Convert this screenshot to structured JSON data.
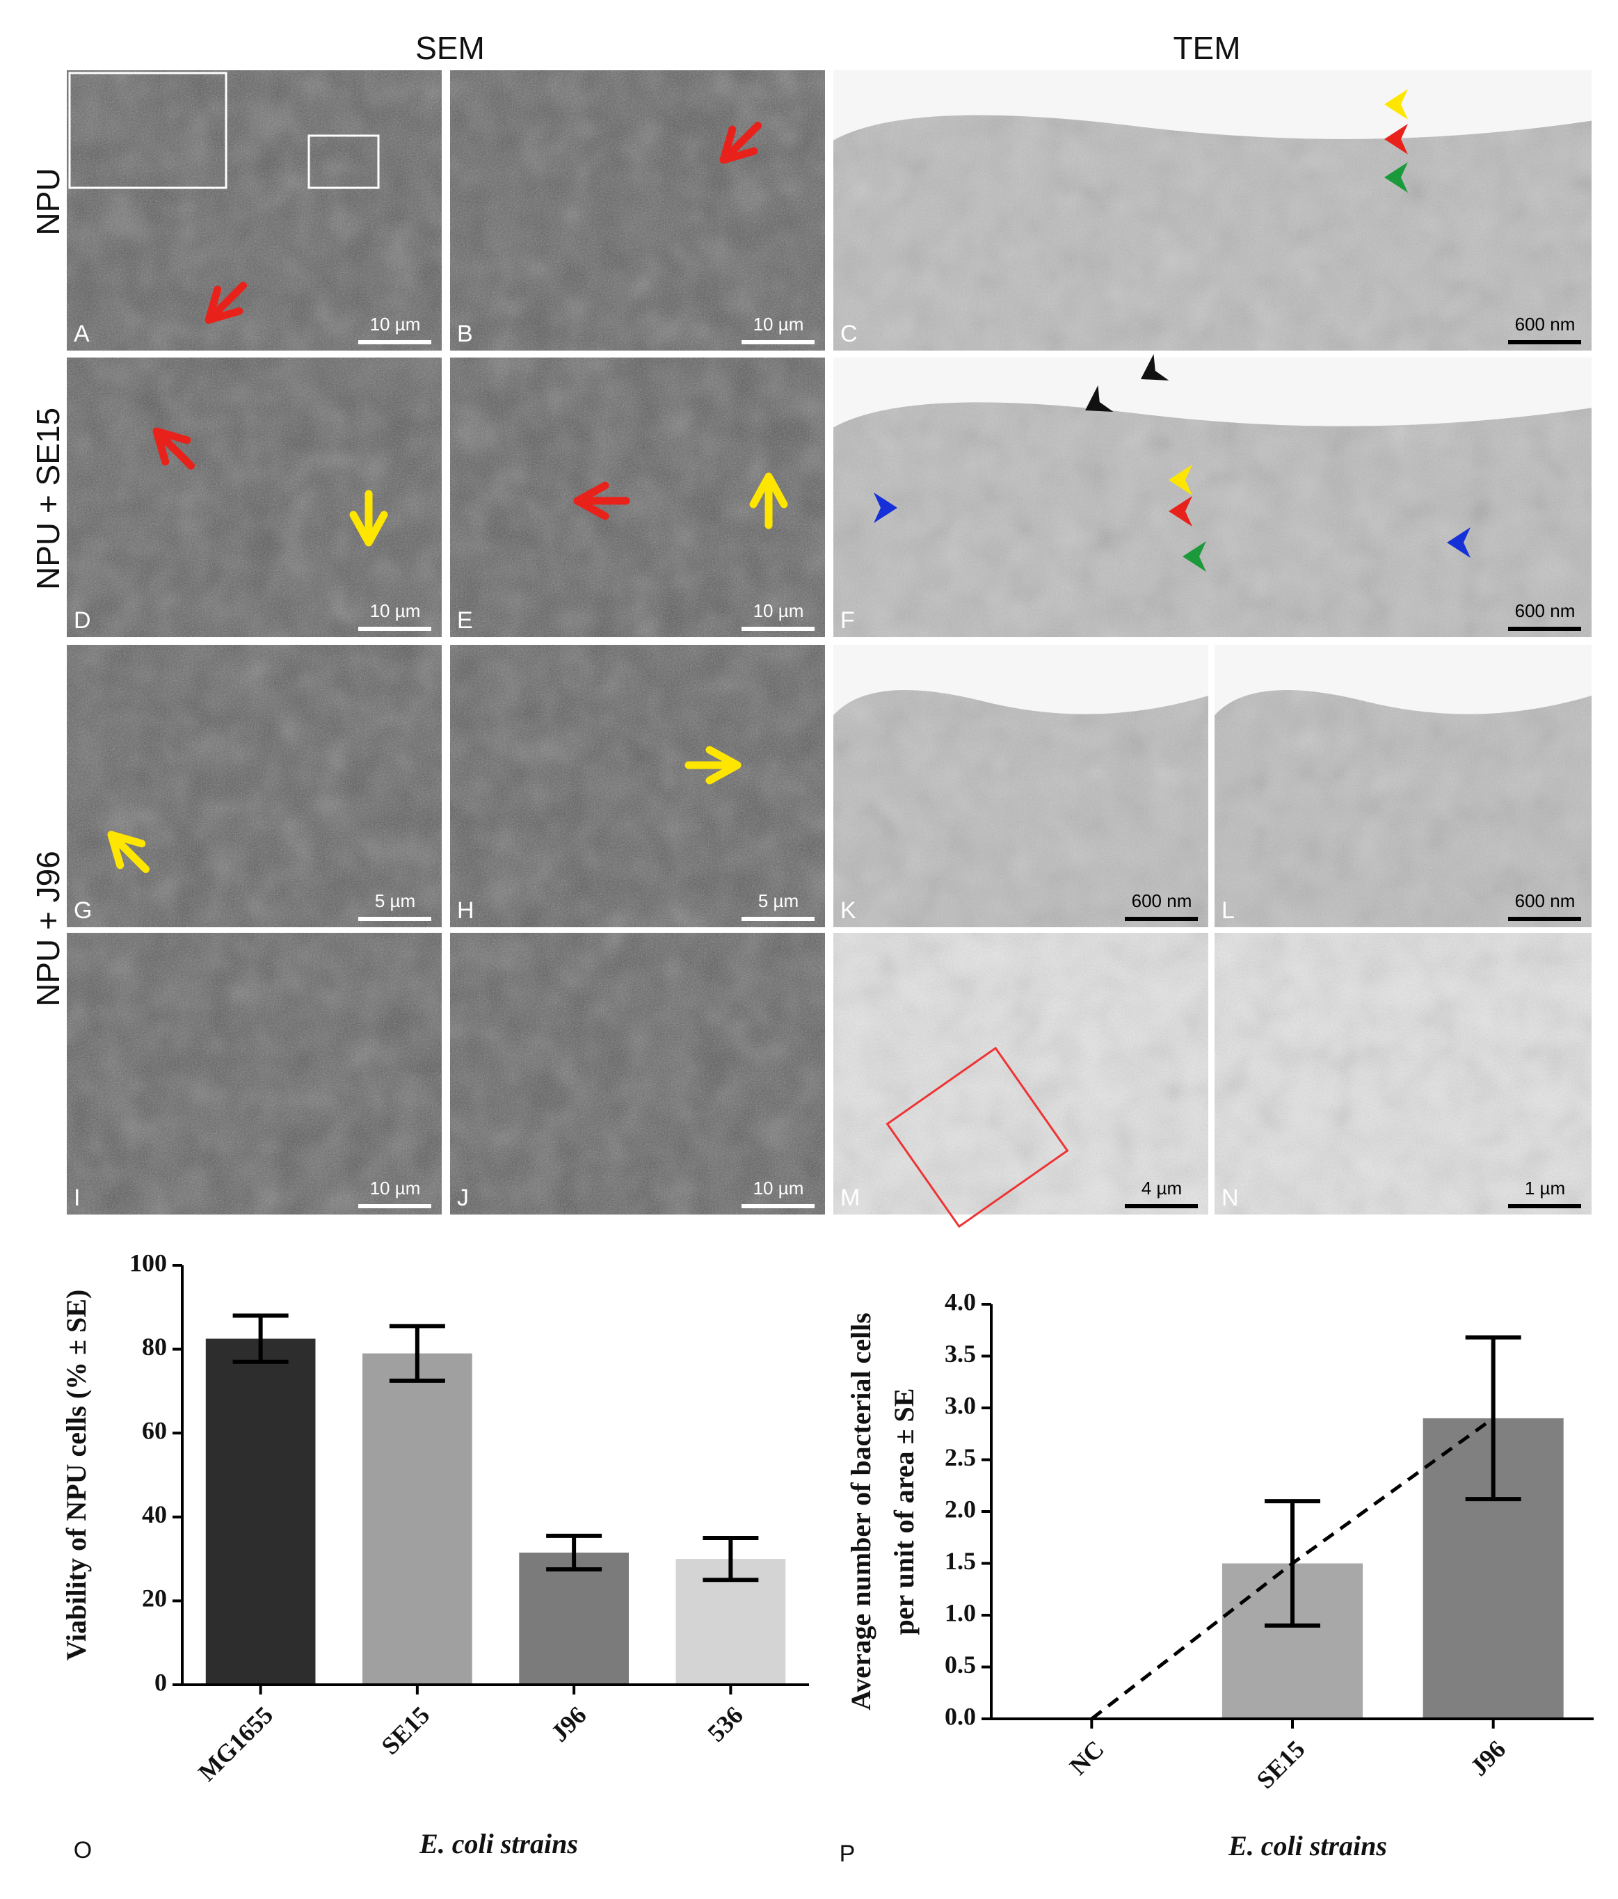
{
  "figure": {
    "headers": [
      "SEM",
      "TEM"
    ],
    "row_labels": [
      "NPU",
      "NPU + SE15",
      "NPU + J96"
    ],
    "panels": [
      {
        "letter": "A",
        "scale_bar": "10 µm"
      },
      {
        "letter": "B",
        "scale_bar": "10 µm"
      },
      {
        "letter": "C",
        "scale_bar": "600 nm"
      },
      {
        "letter": "D",
        "scale_bar": "10 µm"
      },
      {
        "letter": "E",
        "scale_bar": "10 µm"
      },
      {
        "letter": "F",
        "scale_bar": "600 nm"
      },
      {
        "letter": "G",
        "scale_bar": "5 µm"
      },
      {
        "letter": "H",
        "scale_bar": "5 µm"
      },
      {
        "letter": "K",
        "scale_bar": "600 nm"
      },
      {
        "letter": "L",
        "scale_bar": "600 nm"
      },
      {
        "letter": "I",
        "scale_bar": "10 µm"
      },
      {
        "letter": "J",
        "scale_bar": "10 µm"
      },
      {
        "letter": "M",
        "scale_bar": "4 µm"
      },
      {
        "letter": "N",
        "scale_bar": "1 µm"
      }
    ]
  },
  "chart_data": [
    {
      "type": "bar",
      "panel_label": "O",
      "y_label": "Viability of NPU cells  (% ± SE)",
      "x_label": "E. coli strains",
      "categories": [
        "MG1655",
        "SE15",
        "J96",
        "536"
      ],
      "values": [
        82.5,
        79,
        31.5,
        30
      ],
      "errors": [
        5.5,
        6.5,
        4,
        5
      ],
      "colors": [
        "#2d2d2d",
        "#a0a0a0",
        "#7b7b7b",
        "#d4d4d4"
      ],
      "ylim": [
        0,
        100
      ],
      "yticks": [
        0,
        20,
        40,
        60,
        80,
        100
      ]
    },
    {
      "type": "bar",
      "panel_label": "P",
      "y_label": [
        "Average number of bacterial cells",
        "per unit of area ± SE"
      ],
      "x_label": "E. coli strains",
      "categories": [
        "NC",
        "SE15",
        "J96"
      ],
      "values": [
        0,
        1.5,
        2.9
      ],
      "errors": [
        null,
        0.6,
        0.78
      ],
      "colors": [
        "#a8a8a8",
        "#a8a8a8",
        "#808080"
      ],
      "dashed_line": true,
      "ylim": [
        0,
        4
      ],
      "yticks": [
        {
          "value": 0,
          "label": "0.0"
        },
        {
          "value": 0.5,
          "label": "0.5"
        },
        {
          "value": 1,
          "label": "1.0"
        },
        {
          "value": 1.5,
          "label": "1.5"
        },
        {
          "value": 2,
          "label": "2.0"
        },
        {
          "value": 2.5,
          "label": "2.5"
        },
        {
          "value": 3,
          "label": "3.0"
        },
        {
          "value": 3.5,
          "label": "3.5"
        },
        {
          "value": 4,
          "label": "4.0"
        }
      ]
    }
  ]
}
